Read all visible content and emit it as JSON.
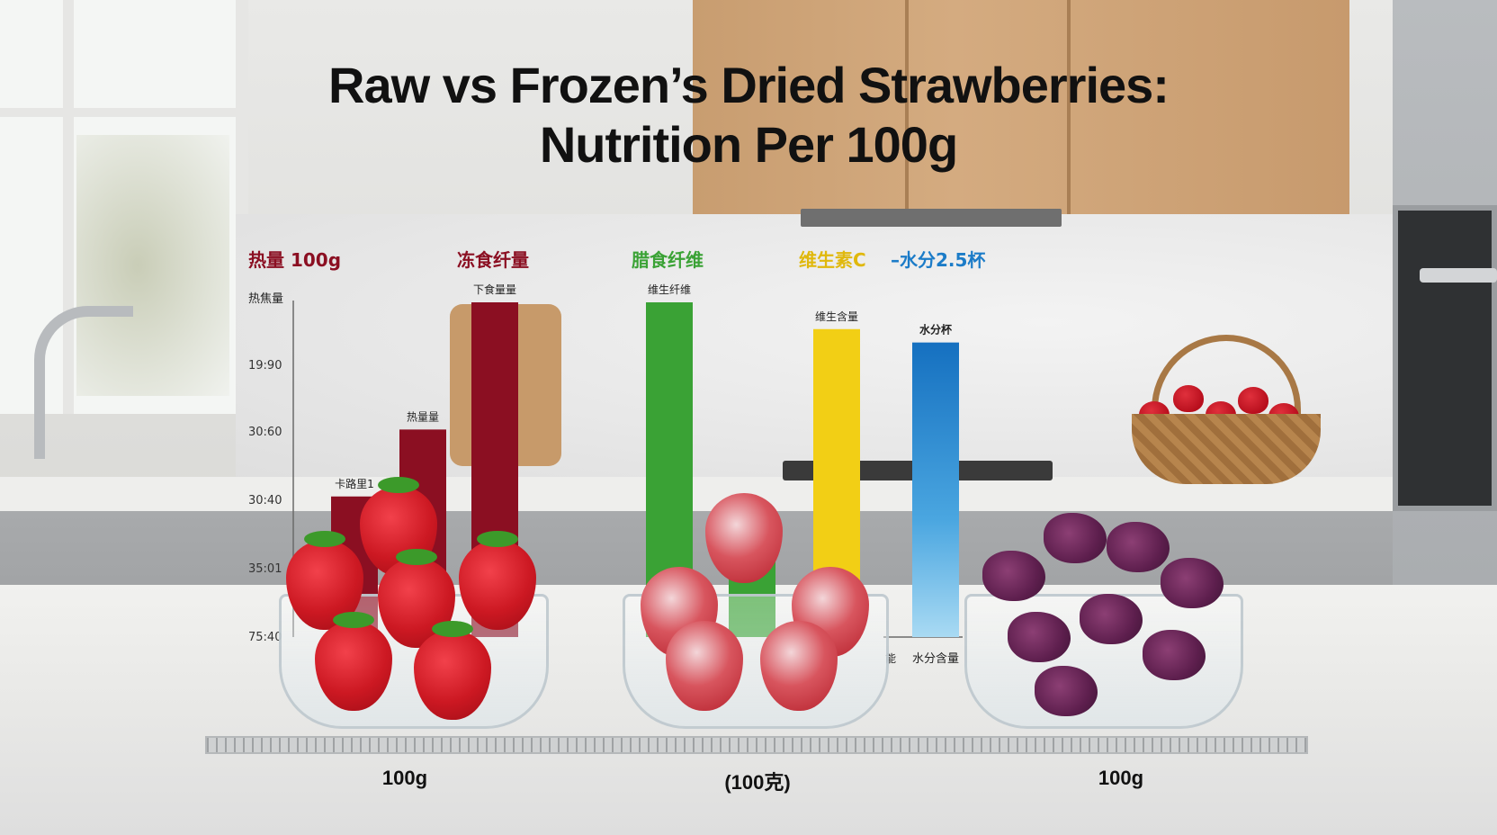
{
  "title_line1": "Raw vs Frozen’s Dried Strawberries:",
  "title_line2": "Nutrition Per 100g",
  "colors": {
    "calories": "#8b0f22",
    "fiber": "#3aa235",
    "vitaminC": "#f2cf15",
    "water": "#1c7cc8"
  },
  "chart_data": {
    "type": "bar",
    "legend": [
      {
        "label": "热量 100g",
        "color": "#8b0f22"
      },
      {
        "label": "冻食纤量",
        "color": "#8b0f22"
      },
      {
        "label": "腊食纤维",
        "color": "#3aa235"
      },
      {
        "label": "维生素C",
        "color": "#f2cf15"
      },
      {
        "label": "–水分2.5杯",
        "color": "#1c7cc8"
      }
    ],
    "y_axis_label": "热焦量",
    "y_ticks": [
      "19:90",
      "30:60",
      "30:40",
      "35:01",
      "75:40"
    ],
    "bars": [
      {
        "label": "卡路里1",
        "value": 42,
        "color": "#8b0f22"
      },
      {
        "label": "热量量",
        "value": 62,
        "color": "#8b0f22"
      },
      {
        "label": "下食量量",
        "value": 100,
        "color": "#8b0f22"
      },
      {
        "label": "维生纤维",
        "value": 100,
        "color": "#3aa235"
      },
      {
        "label": "水分含量",
        "value": 28,
        "color": "#3aa235"
      },
      {
        "label": "维生含量",
        "value": 92,
        "color": "#f2cf15"
      },
      {
        "label": "水分杯",
        "value": 88,
        "color": "#1c7cc8"
      }
    ],
    "x_labels": [
      "能",
      "水分含量"
    ],
    "ylim": [
      0,
      100
    ]
  },
  "bowls": [
    {
      "label": "100g"
    },
    {
      "label": "(100克)"
    },
    {
      "label": "100g"
    }
  ]
}
